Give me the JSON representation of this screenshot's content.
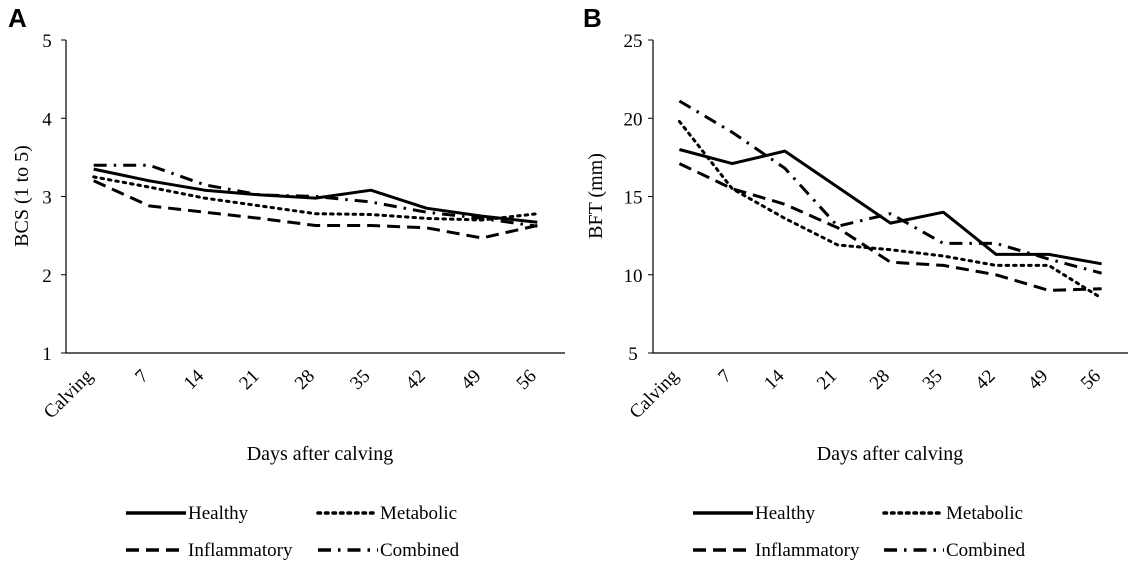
{
  "chart_data": [
    {
      "panel": "A",
      "type": "line",
      "xlabel": "Days after calving",
      "ylabel": "BCS (1 to 5)",
      "categories": [
        "Calving",
        "7",
        "14",
        "21",
        "28",
        "35",
        "42",
        "49",
        "56"
      ],
      "yticks": [
        "1",
        "2",
        "3",
        "4",
        "5"
      ],
      "ylim": [
        1,
        5
      ],
      "series": [
        {
          "name": "Healthy",
          "style": "solid",
          "values": [
            3.35,
            3.2,
            3.08,
            3.02,
            2.98,
            3.08,
            2.85,
            2.75,
            2.67
          ]
        },
        {
          "name": "Metabolic",
          "style": "dotted",
          "values": [
            3.25,
            3.12,
            2.98,
            2.88,
            2.78,
            2.77,
            2.72,
            2.7,
            2.78
          ]
        },
        {
          "name": "Inflammatory",
          "style": "dashed",
          "values": [
            3.2,
            2.88,
            2.8,
            2.72,
            2.63,
            2.63,
            2.6,
            2.47,
            2.63
          ]
        },
        {
          "name": "Combined",
          "style": "dashdot",
          "values": [
            3.4,
            3.4,
            3.15,
            3.02,
            3.0,
            2.93,
            2.8,
            2.72,
            2.62
          ]
        }
      ]
    },
    {
      "panel": "B",
      "type": "line",
      "xlabel": "Days after calving",
      "ylabel": "BFT (mm)",
      "categories": [
        "Calving",
        "7",
        "14",
        "21",
        "28",
        "35",
        "42",
        "49",
        "56"
      ],
      "yticks": [
        "5",
        "10",
        "15",
        "20",
        "25"
      ],
      "ylim": [
        5,
        25
      ],
      "series": [
        {
          "name": "Healthy",
          "style": "solid",
          "values": [
            18.0,
            17.1,
            17.9,
            15.6,
            13.3,
            14.0,
            11.3,
            11.3,
            10.7
          ]
        },
        {
          "name": "Metabolic",
          "style": "dotted",
          "values": [
            19.8,
            15.5,
            13.6,
            11.9,
            11.6,
            11.2,
            10.6,
            10.6,
            8.5
          ]
        },
        {
          "name": "Inflammatory",
          "style": "dashed",
          "values": [
            17.1,
            15.5,
            14.5,
            13.0,
            10.8,
            10.6,
            10.0,
            9.0,
            9.1
          ]
        },
        {
          "name": "Combined",
          "style": "dashdot",
          "values": [
            21.1,
            19.1,
            16.8,
            13.1,
            13.9,
            12.0,
            12.0,
            11.0,
            10.1
          ]
        }
      ]
    }
  ]
}
